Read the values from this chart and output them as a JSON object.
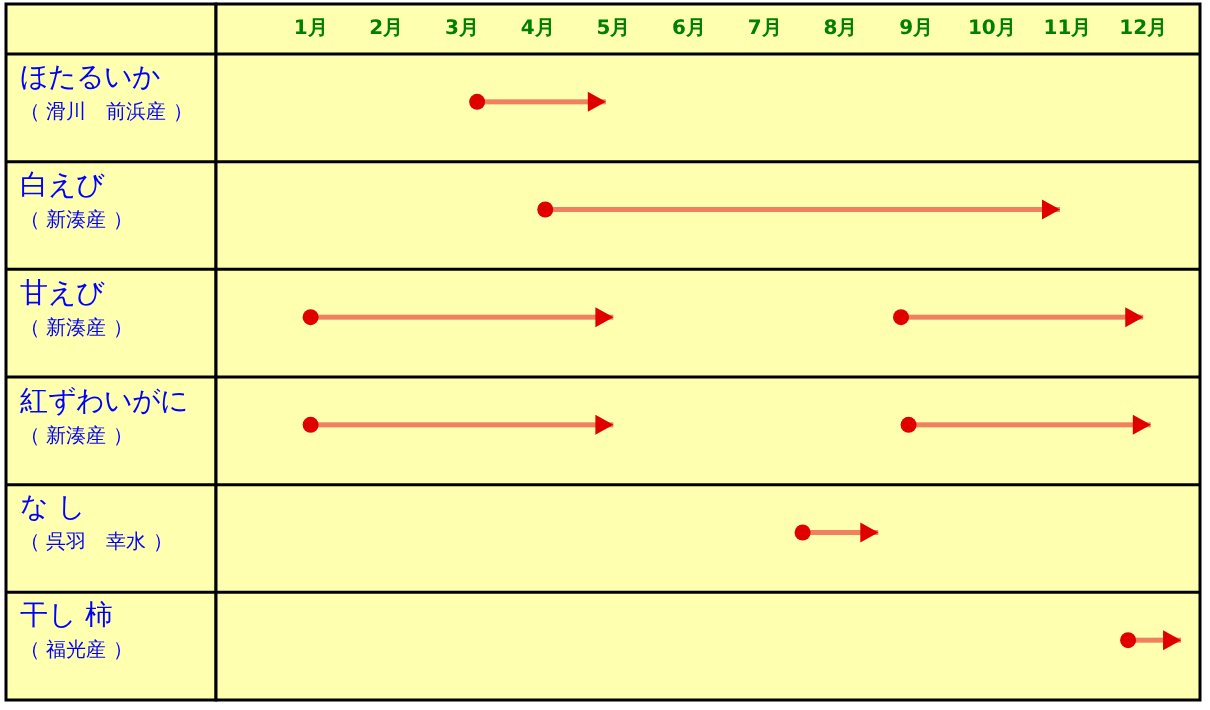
{
  "chart_data": {
    "type": "bar",
    "orientation": "horizontal",
    "categories": [
      "ほたるいか（ 滑川　前浜産 ）",
      "白えび（ 新湊産 ）",
      "甘えび（ 新湊産 ）",
      "紅ずわいがに（ 新湊産 ）",
      "な し（ 呉羽　幸水 ）",
      "干し 柿（ 福光産 ）"
    ],
    "series": [
      {
        "color": "#f08060",
        "base": [
          3.2,
          4.1,
          1,
          1,
          7.5,
          11.8
        ],
        "values": [
          1.7,
          6.8,
          4,
          4,
          1,
          0.7
        ]
      },
      {
        "color": "#f08060",
        "base": [
          null,
          null,
          8.8,
          8.9,
          null,
          null
        ],
        "values": [
          null,
          null,
          3.2,
          3.2,
          null,
          null
        ]
      }
    ],
    "xlim": [
      -0.25,
      12.75
    ],
    "xticks": [
      {
        "value": 1,
        "label": "1月"
      },
      {
        "value": 2,
        "label": "2月"
      },
      {
        "value": 3,
        "label": "3月"
      },
      {
        "value": 4,
        "label": "4月"
      },
      {
        "value": 5,
        "label": "5月"
      },
      {
        "value": 6,
        "label": "6月"
      },
      {
        "value": 7,
        "label": "7月"
      },
      {
        "value": 8,
        "label": "8月"
      },
      {
        "value": 9,
        "label": "9月"
      },
      {
        "value": 10,
        "label": "10月"
      },
      {
        "value": 11,
        "label": "11月"
      },
      {
        "value": 12,
        "label": "12月"
      }
    ]
  }
}
